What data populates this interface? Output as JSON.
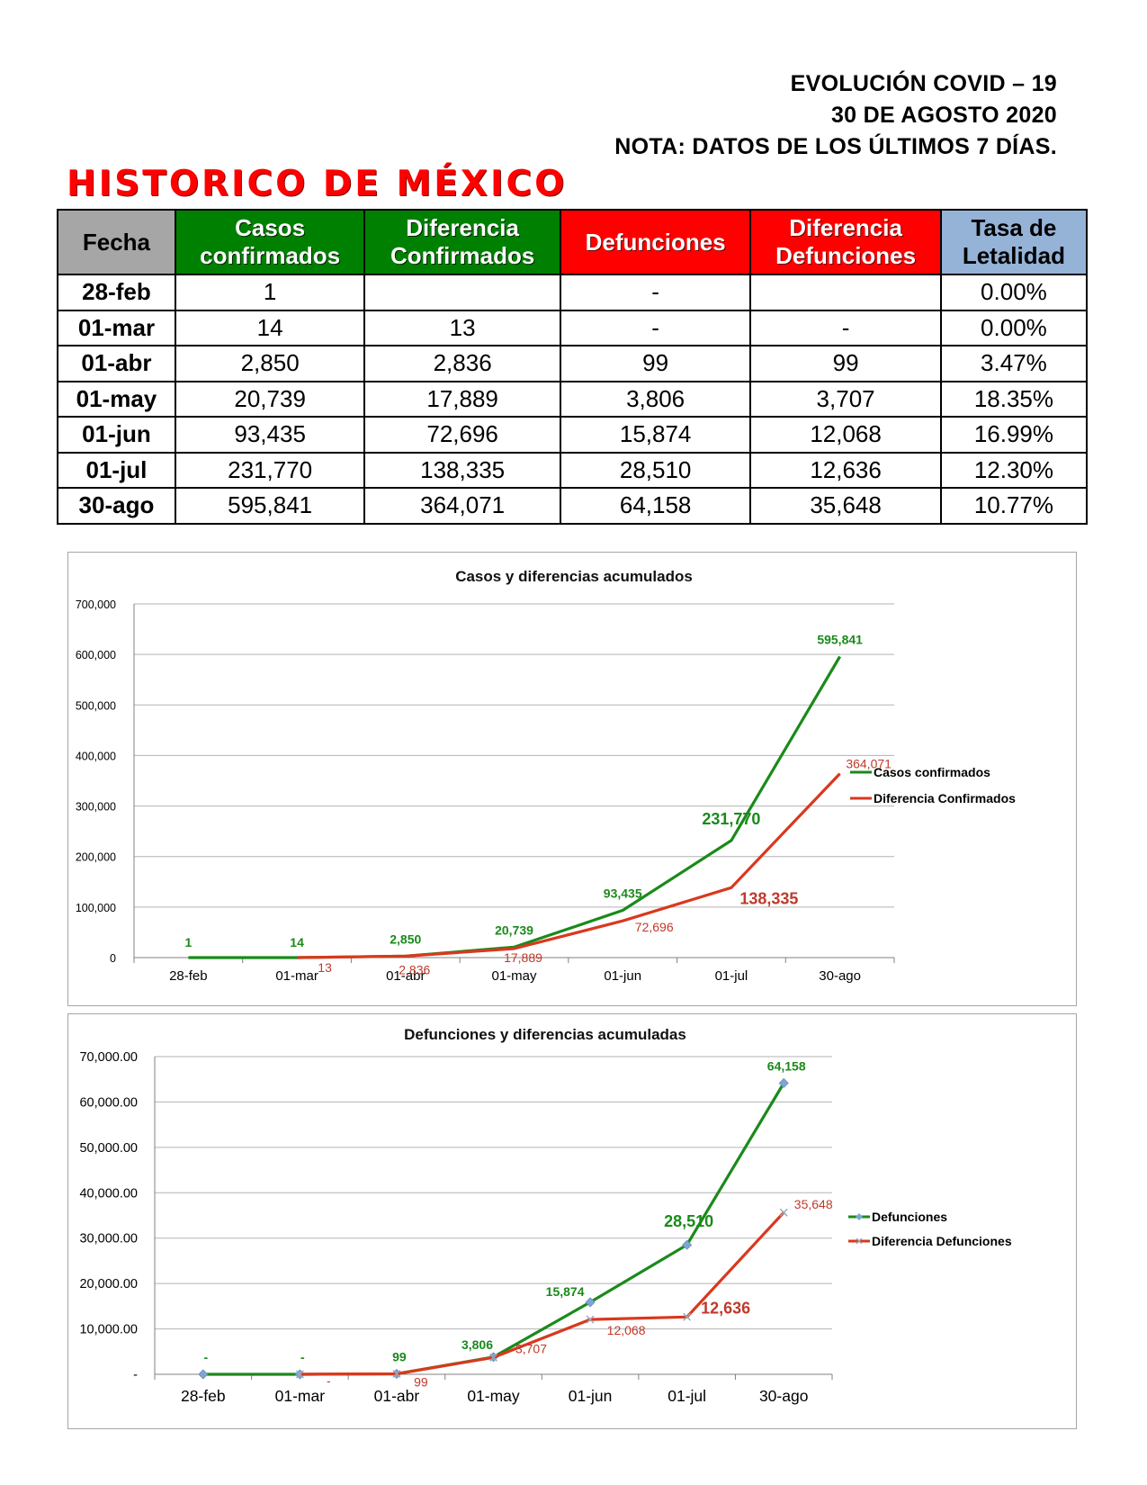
{
  "header": {
    "line1": "EVOLUCIÓN COVID – 19",
    "line2": "30 DE AGOSTO 2020",
    "line3": "NOTA: DATOS DE LOS ÚLTIMOS 7 DÍAS."
  },
  "page_title": "HISTORICO DE MÉXICO",
  "table": {
    "headers": {
      "fecha": "Fecha",
      "casos_1": "Casos",
      "casos_2": "confirmados",
      "dif_conf_1": "Diferencia",
      "dif_conf_2": "Confirmados",
      "defunciones": "Defunciones",
      "dif_def_1": "Diferencia",
      "dif_def_2": "Defunciones",
      "tasa_1": "Tasa de",
      "tasa_2": "Letalidad"
    },
    "rows": [
      {
        "fecha": "28-feb",
        "casos": "1",
        "dif_conf": "",
        "defunciones": "-",
        "dif_def": "",
        "tasa": "0.00%"
      },
      {
        "fecha": "01-mar",
        "casos": "14",
        "dif_conf": "13",
        "defunciones": "-",
        "dif_def": "-",
        "tasa": "0.00%"
      },
      {
        "fecha": "01-abr",
        "casos": "2,850",
        "dif_conf": "2,836",
        "defunciones": "99",
        "dif_def": "99",
        "tasa": "3.47%"
      },
      {
        "fecha": "01-may",
        "casos": "20,739",
        "dif_conf": "17,889",
        "defunciones": "3,806",
        "dif_def": "3,707",
        "tasa": "18.35%"
      },
      {
        "fecha": "01-jun",
        "casos": "93,435",
        "dif_conf": "72,696",
        "defunciones": "15,874",
        "dif_def": "12,068",
        "tasa": "16.99%"
      },
      {
        "fecha": "01-jul",
        "casos": "231,770",
        "dif_conf": "138,335",
        "defunciones": "28,510",
        "dif_def": "12,636",
        "tasa": "12.30%"
      },
      {
        "fecha": "30-ago",
        "casos": "595,841",
        "dif_conf": "364,071",
        "defunciones": "64,158",
        "dif_def": "35,648",
        "tasa": "10.77%"
      }
    ]
  },
  "colors": {
    "green": "#008000",
    "red": "#ff0000",
    "gray": "#a6a6a6",
    "blue": "#95b3d7",
    "series_green": "#1a8a1a",
    "series_red": "#d9381e",
    "label_red": "#c0392b",
    "marker_blue": "#7ea6d3"
  },
  "chart_data": [
    {
      "type": "line",
      "title": "Casos y diferencias acumulados",
      "categories": [
        "28-feb",
        "01-mar",
        "01-abr",
        "01-may",
        "01-jun",
        "01-jul",
        "30-ago"
      ],
      "ylim": [
        0,
        700000
      ],
      "yticks": [
        "0",
        "100,000",
        "200,000",
        "300,000",
        "400,000",
        "500,000",
        "600,000",
        "700,000"
      ],
      "grid": true,
      "legend": "right",
      "series": [
        {
          "name": "Casos confirmados",
          "values": [
            1,
            14,
            2850,
            20739,
            93435,
            231770,
            595841
          ],
          "labels": [
            "1",
            "14",
            "2,850",
            "20,739",
            "93,435",
            "231,770",
            "595,841"
          ]
        },
        {
          "name": "Diferencia Confirmados",
          "values": [
            null,
            13,
            2836,
            17889,
            72696,
            138335,
            364071
          ],
          "labels": [
            "",
            "13",
            "2,836",
            "17,889",
            "72,696",
            "138,335",
            "364,071"
          ]
        }
      ]
    },
    {
      "type": "line",
      "title": "Defunciones y diferencias acumuladas",
      "categories": [
        "28-feb",
        "01-mar",
        "01-abr",
        "01-may",
        "01-jun",
        "01-jul",
        "30-ago"
      ],
      "ylim": [
        0,
        70000
      ],
      "yticks": [
        "-",
        "10,000.00",
        "20,000.00",
        "30,000.00",
        "40,000.00",
        "50,000.00",
        "60,000.00",
        "70,000.00"
      ],
      "grid": true,
      "legend": "right",
      "series": [
        {
          "name": "Defunciones",
          "values": [
            0,
            0,
            99,
            3806,
            15874,
            28510,
            64158
          ],
          "labels": [
            "-",
            "-",
            "99",
            "3,806",
            "15,874",
            "28,510",
            "64,158"
          ]
        },
        {
          "name": "Diferencia Defunciones",
          "values": [
            null,
            0,
            99,
            3707,
            12068,
            12636,
            35648
          ],
          "labels": [
            "",
            "-",
            "99",
            "3,707",
            "12,068",
            "12,636",
            "35,648"
          ]
        }
      ]
    }
  ]
}
